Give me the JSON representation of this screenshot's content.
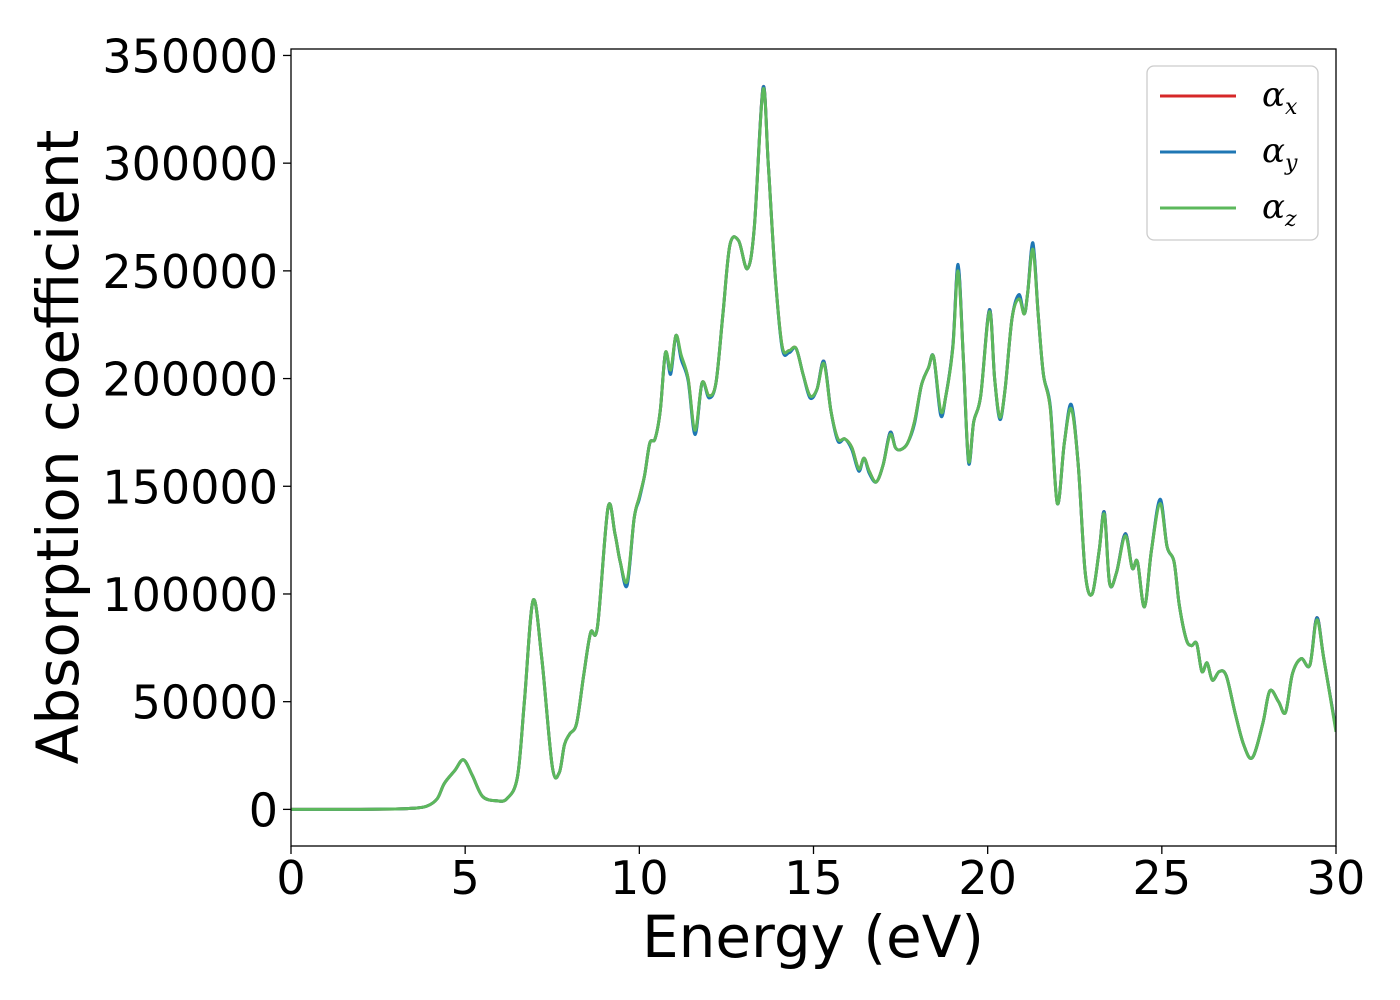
{
  "chart_data": {
    "type": "line",
    "title": "",
    "xlabel": "Energy (eV)",
    "ylabel": "Absorption coefficient",
    "xlim": [
      0,
      30
    ],
    "ylim": [
      -17000,
      353000
    ],
    "xticks": [
      0,
      5,
      10,
      15,
      20,
      25,
      30
    ],
    "xtick_labels": [
      "0",
      "5",
      "10",
      "15",
      "20",
      "25",
      "30"
    ],
    "yticks": [
      0,
      50000,
      100000,
      150000,
      200000,
      250000,
      300000,
      350000
    ],
    "ytick_labels": [
      "0",
      "50000",
      "100000",
      "150000",
      "200000",
      "250000",
      "300000",
      "350000"
    ],
    "grid": false,
    "legend_position": "top-right",
    "x": [
      0,
      1,
      2,
      3,
      3.5,
      3.9,
      4.2,
      4.4,
      4.7,
      4.95,
      5.2,
      5.5,
      5.9,
      6.2,
      6.5,
      6.7,
      6.95,
      7.2,
      7.5,
      7.7,
      7.85,
      8.0,
      8.2,
      8.4,
      8.6,
      8.8,
      9.1,
      9.3,
      9.45,
      9.65,
      9.85,
      10.0,
      10.15,
      10.3,
      10.45,
      10.6,
      10.75,
      10.9,
      11.05,
      11.2,
      11.4,
      11.6,
      11.8,
      12.0,
      12.2,
      12.4,
      12.6,
      12.85,
      13.1,
      13.3,
      13.55,
      13.7,
      13.9,
      14.1,
      14.3,
      14.5,
      14.7,
      14.9,
      15.1,
      15.3,
      15.5,
      15.7,
      15.9,
      16.1,
      16.3,
      16.45,
      16.6,
      16.8,
      17.0,
      17.2,
      17.35,
      17.5,
      17.7,
      17.9,
      18.1,
      18.3,
      18.45,
      18.65,
      18.8,
      19.0,
      19.15,
      19.3,
      19.45,
      19.6,
      19.8,
      20.05,
      20.2,
      20.35,
      20.5,
      20.7,
      20.9,
      21.05,
      21.15,
      21.3,
      21.45,
      21.6,
      21.8,
      22.0,
      22.2,
      22.4,
      22.6,
      22.8,
      23.0,
      23.2,
      23.35,
      23.5,
      23.7,
      23.95,
      24.15,
      24.3,
      24.5,
      24.7,
      24.95,
      25.15,
      25.35,
      25.5,
      25.7,
      25.85,
      26.0,
      26.15,
      26.3,
      26.45,
      26.65,
      26.85,
      27.1,
      27.35,
      27.6,
      27.9,
      28.1,
      28.35,
      28.55,
      28.75,
      29.0,
      29.25,
      29.45,
      29.65,
      30.0
    ],
    "series": [
      {
        "name": "x",
        "color": "#d62728",
        "values": [
          0,
          0,
          0,
          200,
          500,
          1500,
          5000,
          12000,
          18000,
          23000,
          16000,
          6000,
          4000,
          5000,
          15000,
          50000,
          97000,
          70000,
          20000,
          17000,
          30000,
          35000,
          40000,
          62000,
          82000,
          85000,
          140000,
          128000,
          115000,
          105000,
          135000,
          145000,
          155000,
          170000,
          172000,
          185000,
          212000,
          203000,
          220000,
          210000,
          200000,
          175000,
          198000,
          192000,
          198000,
          230000,
          262000,
          264000,
          251000,
          270000,
          335000,
          300000,
          248000,
          215000,
          213000,
          214000,
          202000,
          192000,
          195000,
          208000,
          185000,
          172000,
          172000,
          168000,
          158000,
          163000,
          157000,
          152000,
          160000,
          175000,
          168000,
          167000,
          170000,
          180000,
          197000,
          205000,
          210000,
          184000,
          192000,
          215000,
          252000,
          210000,
          162000,
          180000,
          192000,
          232000,
          200000,
          182000,
          195000,
          228000,
          238000,
          230000,
          240000,
          262000,
          230000,
          202000,
          186000,
          142000,
          170000,
          187000,
          160000,
          110000,
          100000,
          120000,
          138000,
          105000,
          110000,
          128000,
          112000,
          115000,
          94000,
          120000,
          143000,
          122000,
          115000,
          95000,
          79000,
          76000,
          77000,
          64000,
          68000,
          60000,
          64000,
          62000,
          45000,
          30000,
          24000,
          40000,
          55000,
          50000,
          45000,
          63000,
          70000,
          67000,
          89000,
          70000,
          37000
        ]
      },
      {
        "name": "y",
        "color": "#1f77b4",
        "values": [
          0,
          0,
          0,
          200,
          500,
          1500,
          5000,
          12000,
          18000,
          23000,
          16000,
          6000,
          4000,
          5000,
          15000,
          50000,
          97000,
          70000,
          20000,
          17000,
          30000,
          35000,
          40000,
          62000,
          82000,
          85000,
          140000,
          128000,
          115000,
          104000,
          135000,
          144000,
          155000,
          170000,
          172000,
          185000,
          212000,
          202000,
          220000,
          209000,
          199000,
          174000,
          198000,
          191000,
          198000,
          230000,
          262000,
          264000,
          251000,
          270000,
          335000,
          300000,
          248000,
          214000,
          212000,
          214000,
          202000,
          191000,
          195000,
          208000,
          185000,
          171000,
          172000,
          167000,
          157000,
          163000,
          156000,
          152000,
          160000,
          175000,
          168000,
          167000,
          170000,
          179000,
          197000,
          205000,
          210000,
          183000,
          192000,
          215000,
          253000,
          210000,
          161000,
          180000,
          192000,
          232000,
          200000,
          181000,
          195000,
          228000,
          239000,
          230000,
          240000,
          263000,
          230000,
          202000,
          187000,
          142000,
          170000,
          188000,
          160000,
          110000,
          100000,
          120000,
          138000,
          105000,
          110000,
          128000,
          112000,
          115000,
          94000,
          120000,
          144000,
          122000,
          115000,
          95000,
          79000,
          76000,
          77000,
          64000,
          68000,
          60000,
          64000,
          62000,
          45000,
          30000,
          24000,
          40000,
          55000,
          50000,
          45000,
          63000,
          70000,
          67000,
          89000,
          70000,
          37000
        ]
      },
      {
        "name": "z",
        "color": "#5cb85c",
        "values": [
          0,
          0,
          0,
          200,
          500,
          1500,
          5000,
          12000,
          18000,
          23000,
          16000,
          6000,
          4000,
          5000,
          15000,
          50000,
          97000,
          70000,
          20000,
          17000,
          30000,
          35000,
          40000,
          62000,
          82000,
          85000,
          140000,
          128000,
          115000,
          106000,
          135000,
          145000,
          155000,
          170000,
          172000,
          185000,
          212000,
          204000,
          220000,
          211000,
          200000,
          176000,
          198000,
          192000,
          198000,
          230000,
          262000,
          264000,
          251000,
          270000,
          334000,
          300000,
          248000,
          215000,
          213000,
          214000,
          202000,
          192000,
          195000,
          207000,
          185000,
          172000,
          172000,
          168000,
          158000,
          163000,
          157000,
          152000,
          160000,
          174000,
          168000,
          167000,
          170000,
          180000,
          197000,
          205000,
          210000,
          185000,
          192000,
          214000,
          250000,
          210000,
          162000,
          180000,
          192000,
          231000,
          200000,
          182000,
          195000,
          228000,
          237000,
          230000,
          240000,
          260000,
          230000,
          202000,
          186000,
          142000,
          170000,
          186000,
          160000,
          110000,
          100000,
          120000,
          137000,
          105000,
          110000,
          127000,
          112000,
          115000,
          94000,
          120000,
          142000,
          122000,
          115000,
          95000,
          79000,
          76000,
          77000,
          64000,
          68000,
          60000,
          64000,
          62000,
          45000,
          30000,
          24000,
          40000,
          55000,
          50000,
          45000,
          63000,
          70000,
          67000,
          88000,
          70000,
          36000
        ]
      }
    ]
  },
  "legend": {
    "symbol": "α",
    "items": [
      {
        "subscript": "x",
        "color": "#d62728"
      },
      {
        "subscript": "y",
        "color": "#1f77b4"
      },
      {
        "subscript": "z",
        "color": "#5cb85c"
      }
    ]
  }
}
